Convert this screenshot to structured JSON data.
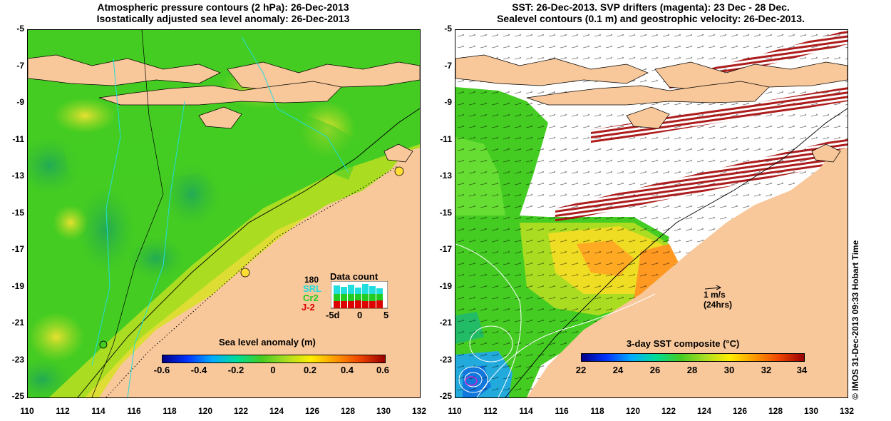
{
  "left_panel": {
    "title_line1": "Atmospheric pressure contours (2 hPa): 26-Dec-2013",
    "title_line2": "Isostatically adjusted sea level anomaly: 26-Dec-2013",
    "colorbar": {
      "title": "Sea level anomaly (m)",
      "ticks": [
        "-0.6",
        "-0.4",
        "-0.2",
        "0",
        "0.2",
        "0.4",
        "0.6"
      ]
    },
    "inset": {
      "title": "Data count",
      "max_label": "180",
      "x_labels": [
        "-5d",
        "0",
        "5"
      ],
      "satellites": [
        {
          "name": "SRL",
          "color": "#22dddd"
        },
        {
          "name": "Cr2",
          "color": "#22cc22"
        },
        {
          "name": "J-2",
          "color": "#dd0000"
        }
      ]
    }
  },
  "right_panel": {
    "title_line1": "SST: 26-Dec-2013. SVP drifters (magenta): 23 Dec - 28 Dec.",
    "title_line2": "Sealevel contours (0.1 m) and geostrophic velocity: 26-Dec-2013.",
    "colorbar": {
      "title": "3-day SST composite (°C)",
      "ticks": [
        "22",
        "24",
        "26",
        "28",
        "30",
        "32",
        "34"
      ]
    },
    "scale_arrow": {
      "label1": "1 m/s",
      "label2": "(24hrs)"
    }
  },
  "axes": {
    "y_ticks": [
      "-5",
      "-7",
      "-9",
      "-11",
      "-13",
      "-15",
      "-17",
      "-19",
      "-21",
      "-23",
      "-25"
    ],
    "x_ticks": [
      "110",
      "112",
      "114",
      "116",
      "118",
      "120",
      "122",
      "124",
      "126",
      "128",
      "130",
      "132"
    ]
  },
  "side_label": "© IMOS 31-Dec-2013 09:33 Hobart Time",
  "colors": {
    "land": "#f8c79a",
    "sea_green": "#44cc22",
    "cyan_contour": "#22dddd",
    "drifter_red": "#aa1111"
  }
}
